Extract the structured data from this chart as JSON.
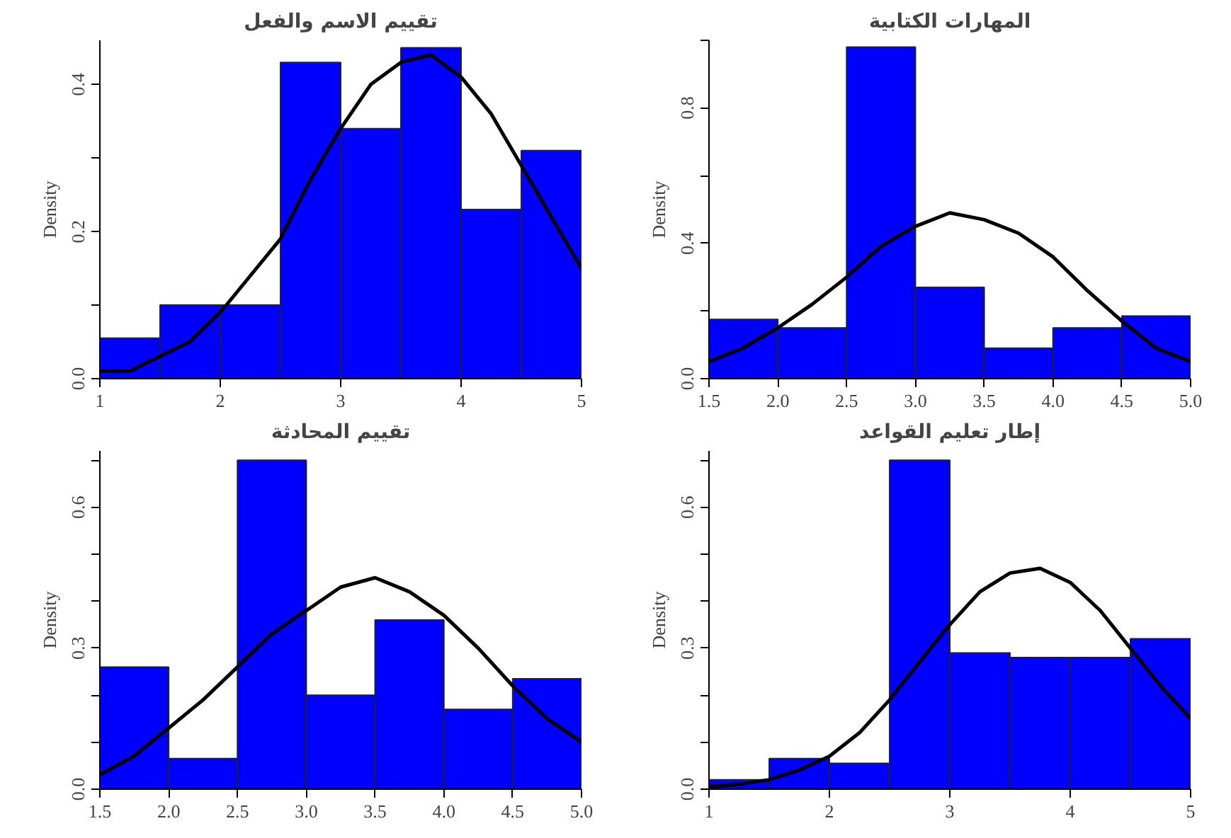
{
  "chart_data": [
    {
      "type": "histogram",
      "title": "تقييم الاسم والفعل",
      "ylabel": "Density",
      "color": "#0000ff",
      "bins": [
        1,
        1.5,
        2,
        2.5,
        3,
        3.5,
        4,
        4.5,
        5
      ],
      "values": [
        0.055,
        0.1,
        0.1,
        0.43,
        0.34,
        0.45,
        0.23,
        0.31
      ],
      "xlim": [
        1,
        5
      ],
      "xticks": [
        1,
        2,
        3,
        4,
        5
      ],
      "ylim": [
        0,
        0.46
      ],
      "yticks": [
        {
          "value": 0,
          "label": "0.0"
        },
        {
          "value": 0.1,
          "label": null
        },
        {
          "value": 0.2,
          "label": "0.2"
        },
        {
          "value": 0.3,
          "label": null
        },
        {
          "value": 0.4,
          "label": "0.4"
        }
      ],
      "series": [
        {
          "type": "line",
          "color": "#000000",
          "x": [
            1,
            1.25,
            1.5,
            1.75,
            2,
            2.25,
            2.5,
            2.75,
            3,
            3.25,
            3.5,
            3.75,
            4,
            4.25,
            4.5,
            4.75,
            5
          ],
          "values": [
            0.01,
            0.01,
            0.03,
            0.05,
            0.09,
            0.14,
            0.19,
            0.27,
            0.34,
            0.4,
            0.43,
            0.44,
            0.41,
            0.36,
            0.29,
            0.22,
            0.15
          ]
        }
      ]
    },
    {
      "type": "histogram",
      "title": "المهارات الكتابية",
      "ylabel": "Density",
      "color": "#0000ff",
      "bins": [
        1.5,
        2,
        2.5,
        3,
        3.5,
        4,
        4.5,
        5
      ],
      "values": [
        0.175,
        0.15,
        0.98,
        0.27,
        0.09,
        0.15,
        0.185
      ],
      "xlim": [
        1.5,
        5
      ],
      "xticks": [
        {
          "value": 1.5,
          "label": "1.5"
        },
        {
          "value": 2,
          "label": "2.0"
        },
        {
          "value": 2.5,
          "label": "2.5"
        },
        {
          "value": 3,
          "label": "3.0"
        },
        {
          "value": 3.5,
          "label": "3.5"
        },
        {
          "value": 4,
          "label": "4.0"
        },
        {
          "value": 4.5,
          "label": "4.5"
        },
        {
          "value": 5,
          "label": "5.0"
        }
      ],
      "ylim": [
        0,
        1.0
      ],
      "yticks": [
        {
          "value": 0,
          "label": "0.0"
        },
        {
          "value": 0.2,
          "label": null
        },
        {
          "value": 0.4,
          "label": "0.4"
        },
        {
          "value": 0.6,
          "label": null
        },
        {
          "value": 0.8,
          "label": "0.8"
        },
        {
          "value": 1.0,
          "label": null
        }
      ],
      "series": [
        {
          "type": "line",
          "color": "#000000",
          "x": [
            1.5,
            1.75,
            2,
            2.25,
            2.5,
            2.75,
            3,
            3.25,
            3.5,
            3.75,
            4,
            4.25,
            4.5,
            4.75,
            5
          ],
          "values": [
            0.05,
            0.09,
            0.15,
            0.22,
            0.3,
            0.39,
            0.45,
            0.49,
            0.47,
            0.43,
            0.36,
            0.26,
            0.17,
            0.09,
            0.05
          ]
        }
      ]
    },
    {
      "type": "histogram",
      "title": "تقييم المحادثة",
      "ylabel": "Density",
      "color": "#0000ff",
      "bins": [
        1.5,
        2,
        2.5,
        3,
        3.5,
        4,
        4.5,
        5
      ],
      "values": [
        0.26,
        0.065,
        0.7,
        0.2,
        0.36,
        0.17,
        0.235
      ],
      "xlim": [
        1.5,
        5
      ],
      "xticks": [
        {
          "value": 1.5,
          "label": "1.5"
        },
        {
          "value": 2,
          "label": "2.0"
        },
        {
          "value": 2.5,
          "label": "2.5"
        },
        {
          "value": 3,
          "label": "3.0"
        },
        {
          "value": 3.5,
          "label": "3.5"
        },
        {
          "value": 4,
          "label": "4.0"
        },
        {
          "value": 4.5,
          "label": "4.5"
        },
        {
          "value": 5,
          "label": "5.0"
        }
      ],
      "ylim": [
        0,
        0.72
      ],
      "yticks": [
        {
          "value": 0,
          "label": "0.0"
        },
        {
          "value": 0.1,
          "label": null
        },
        {
          "value": 0.2,
          "label": null
        },
        {
          "value": 0.3,
          "label": "0.3"
        },
        {
          "value": 0.4,
          "label": null
        },
        {
          "value": 0.5,
          "label": null
        },
        {
          "value": 0.6,
          "label": "0.6"
        },
        {
          "value": 0.7,
          "label": null
        }
      ],
      "series": [
        {
          "type": "line",
          "color": "#000000",
          "x": [
            1.5,
            1.75,
            2,
            2.25,
            2.5,
            2.75,
            3,
            3.25,
            3.5,
            3.75,
            4,
            4.25,
            4.5,
            4.75,
            5
          ],
          "values": [
            0.03,
            0.07,
            0.13,
            0.19,
            0.26,
            0.33,
            0.38,
            0.43,
            0.45,
            0.42,
            0.37,
            0.3,
            0.22,
            0.15,
            0.1
          ]
        }
      ]
    },
    {
      "type": "histogram",
      "title": "إطار تعليم القواعد",
      "ylabel": "Density",
      "color": "#0000ff",
      "bins": [
        1,
        1.5,
        2,
        2.5,
        3,
        3.5,
        4,
        4.5,
        5
      ],
      "values": [
        0.02,
        0.065,
        0.055,
        0.7,
        0.29,
        0.28,
        0.28,
        0.32
      ],
      "xlim": [
        1,
        5
      ],
      "xticks": [
        1,
        2,
        3,
        4,
        5
      ],
      "ylim": [
        0,
        0.72
      ],
      "yticks": [
        {
          "value": 0,
          "label": "0.0"
        },
        {
          "value": 0.1,
          "label": null
        },
        {
          "value": 0.2,
          "label": null
        },
        {
          "value": 0.3,
          "label": "0.3"
        },
        {
          "value": 0.4,
          "label": null
        },
        {
          "value": 0.5,
          "label": null
        },
        {
          "value": 0.6,
          "label": "0.6"
        },
        {
          "value": 0.7,
          "label": null
        }
      ],
      "series": [
        {
          "type": "line",
          "color": "#000000",
          "x": [
            1,
            1.25,
            1.5,
            1.75,
            2,
            2.25,
            2.5,
            2.75,
            3,
            3.25,
            3.5,
            3.75,
            4,
            4.25,
            4.5,
            4.75,
            5
          ],
          "values": [
            0.005,
            0.01,
            0.02,
            0.04,
            0.07,
            0.12,
            0.19,
            0.27,
            0.35,
            0.42,
            0.46,
            0.47,
            0.44,
            0.38,
            0.3,
            0.22,
            0.15
          ]
        }
      ]
    }
  ]
}
